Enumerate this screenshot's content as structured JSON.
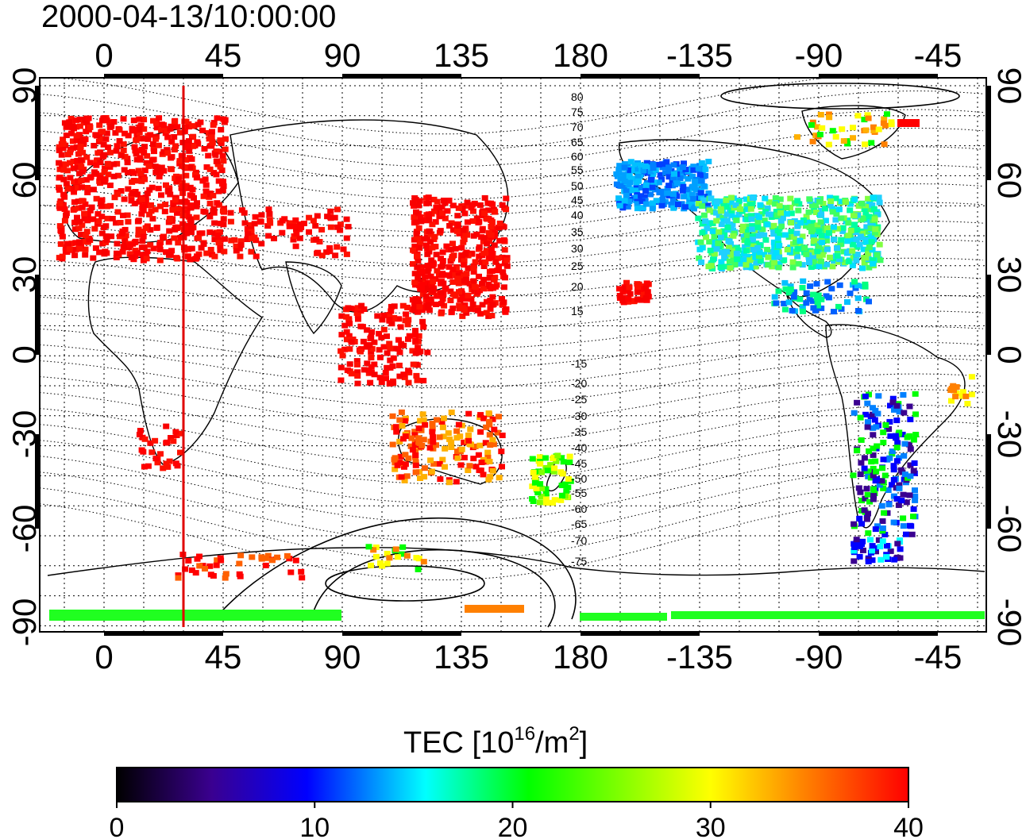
{
  "timestamp": "2000-04-13/10:00:00",
  "map": {
    "top_lon_labels": [
      "0",
      "45",
      "90",
      "135",
      "180",
      "-135",
      "-90",
      "-45"
    ],
    "bottom_lon_labels": [
      "0",
      "45",
      "90",
      "135",
      "180",
      "-135",
      "-90",
      "-45"
    ],
    "left_lat_labels": [
      "90",
      "60",
      "30",
      "0",
      "-30",
      "-60",
      "-90"
    ],
    "right_lat_labels": [
      "90",
      "60",
      "30",
      "0",
      "-30",
      "-60",
      "-90"
    ],
    "contour_labels": [
      "80",
      "75",
      "70",
      "65",
      "60",
      "55",
      "50",
      "45",
      "40",
      "35",
      "30",
      "25",
      "20",
      "15",
      "-15",
      "-20",
      "-25",
      "-30",
      "-35",
      "-40",
      "-45",
      "-50",
      "-55",
      "-60",
      "-65",
      "-70",
      "-75"
    ],
    "meridian_line_color": "#e00000"
  },
  "colorbar": {
    "title_prefix": "TEC  [10",
    "title_sup1": "16",
    "title_mid": "/m",
    "title_sup2": "2",
    "title_suffix": "]",
    "tick_labels": [
      "0",
      "10",
      "20",
      "30",
      "40"
    ],
    "range": [
      0,
      40
    ],
    "stops": [
      "#000000",
      "#3a0090",
      "#0000ff",
      "#00ffff",
      "#00ff00",
      "#ffff00",
      "#ff8000",
      "#ff0000"
    ]
  }
}
